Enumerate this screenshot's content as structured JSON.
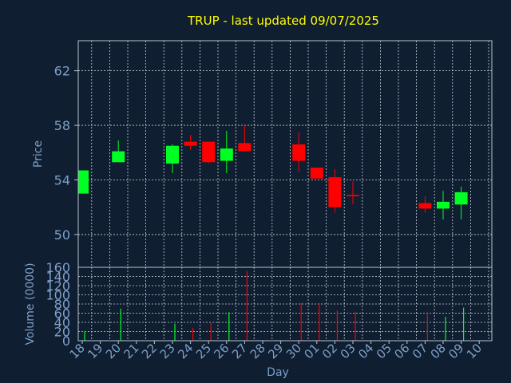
{
  "colors": {
    "background": "#0f1e30",
    "axis_text": "#7f9fc8",
    "title": "#ffff00",
    "up": "#00ff22",
    "down": "#ff0000",
    "grid": "#c8d2dc",
    "frame": "#b8c4d0"
  },
  "chart_data": [
    {
      "type": "candlestick",
      "title": "TRUP - last updated 09/07/2025",
      "ylabel": "Price",
      "ylim": [
        47.6,
        64.2
      ],
      "yticks": [
        50,
        54,
        58,
        62
      ],
      "grid": true,
      "x_categories": [
        "18",
        "19",
        "20",
        "21",
        "22",
        "23",
        "24",
        "25",
        "26",
        "27",
        "28",
        "29",
        "30",
        "01",
        "02",
        "03",
        "04",
        "05",
        "06",
        "07",
        "08",
        "09",
        "10"
      ],
      "candles": [
        {
          "day": "18",
          "open": 53.0,
          "high": 54.7,
          "low": 53.0,
          "close": 54.7
        },
        {
          "day": "20",
          "open": 55.3,
          "high": 56.9,
          "low": 55.3,
          "close": 56.1
        },
        {
          "day": "23",
          "open": 55.2,
          "high": 56.6,
          "low": 54.5,
          "close": 56.5
        },
        {
          "day": "24",
          "open": 56.8,
          "high": 57.3,
          "low": 56.2,
          "close": 56.5
        },
        {
          "day": "25",
          "open": 56.8,
          "high": 56.8,
          "low": 55.2,
          "close": 55.3
        },
        {
          "day": "26",
          "open": 55.4,
          "high": 57.6,
          "low": 54.5,
          "close": 56.3
        },
        {
          "day": "27",
          "open": 56.7,
          "high": 58.0,
          "low": 56.1,
          "close": 56.1
        },
        {
          "day": "30",
          "open": 56.6,
          "high": 57.5,
          "low": 54.6,
          "close": 55.4
        },
        {
          "day": "01",
          "open": 54.9,
          "high": 54.9,
          "low": 54.1,
          "close": 54.1
        },
        {
          "day": "02",
          "open": 54.2,
          "high": 54.8,
          "low": 51.6,
          "close": 52.0
        },
        {
          "day": "03",
          "open": 52.9,
          "high": 53.9,
          "low": 52.2,
          "close": 52.8
        },
        {
          "day": "07",
          "open": 52.3,
          "high": 52.8,
          "low": 51.6,
          "close": 51.9
        },
        {
          "day": "08",
          "open": 51.9,
          "high": 53.2,
          "low": 51.1,
          "close": 52.4
        },
        {
          "day": "09",
          "open": 52.2,
          "high": 53.5,
          "low": 51.1,
          "close": 53.1
        }
      ]
    },
    {
      "type": "bar",
      "ylabel": "Volume (0000)",
      "xlabel": "Day",
      "ylim": [
        0,
        160
      ],
      "yticks": [
        0,
        20,
        40,
        60,
        80,
        100,
        120,
        140,
        160
      ],
      "grid": true,
      "x_categories": [
        "18",
        "19",
        "20",
        "21",
        "22",
        "23",
        "24",
        "25",
        "26",
        "27",
        "28",
        "29",
        "30",
        "01",
        "02",
        "03",
        "04",
        "05",
        "06",
        "07",
        "08",
        "09",
        "10"
      ],
      "bars": [
        {
          "day": "18",
          "value": 20,
          "direction": "up"
        },
        {
          "day": "20",
          "value": 70,
          "direction": "up"
        },
        {
          "day": "23",
          "value": 37,
          "direction": "up"
        },
        {
          "day": "24",
          "value": 28,
          "direction": "down"
        },
        {
          "day": "25",
          "value": 38,
          "direction": "down"
        },
        {
          "day": "26",
          "value": 62,
          "direction": "up"
        },
        {
          "day": "27",
          "value": 152,
          "direction": "down"
        },
        {
          "day": "30",
          "value": 83,
          "direction": "down"
        },
        {
          "day": "01",
          "value": 83,
          "direction": "down"
        },
        {
          "day": "02",
          "value": 66,
          "direction": "down"
        },
        {
          "day": "03",
          "value": 62,
          "direction": "down"
        },
        {
          "day": "07",
          "value": 63,
          "direction": "down"
        },
        {
          "day": "08",
          "value": 52,
          "direction": "up"
        },
        {
          "day": "09",
          "value": 72,
          "direction": "up"
        }
      ]
    }
  ]
}
